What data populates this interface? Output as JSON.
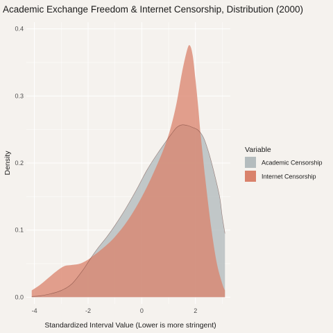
{
  "chart_data": {
    "type": "area",
    "title": "Academic Exchange Freedom & Internet Censorship, Distribution (2000)",
    "xlabel": "Standardized Interval Value (Lower is more stringent)",
    "ylabel": "Density",
    "xlim": [
      -4.3,
      3.3
    ],
    "ylim": [
      -0.01,
      0.41
    ],
    "x_ticks": [
      -4,
      -2,
      0,
      2
    ],
    "y_ticks": [
      0.0,
      0.1,
      0.2,
      0.3,
      0.4
    ],
    "x_tick_labels": [
      "-4",
      "-2",
      "0",
      "2"
    ],
    "y_tick_labels": [
      "0.0",
      "0.1",
      "0.2",
      "0.3",
      "0.4"
    ],
    "grid": true,
    "legend": {
      "title": "Variable",
      "position": "right",
      "entries": [
        "Academic Censorship",
        "Internet Censorship"
      ]
    },
    "series": [
      {
        "name": "Academic Censorship",
        "color": "#b4bcbe",
        "x": [
          -4.1,
          -3.8,
          -3.4,
          -3.0,
          -2.6,
          -2.2,
          -2.0,
          -1.8,
          -1.6,
          -1.3,
          -1.0,
          -0.6,
          -0.2,
          0.2,
          0.6,
          0.9,
          1.1,
          1.3,
          1.5,
          1.7,
          1.9,
          2.1,
          2.3,
          2.5,
          2.7,
          2.9,
          3.0,
          3.1
        ],
        "y": [
          0.001,
          0.002,
          0.005,
          0.01,
          0.02,
          0.04,
          0.052,
          0.064,
          0.075,
          0.09,
          0.107,
          0.132,
          0.16,
          0.19,
          0.215,
          0.232,
          0.243,
          0.253,
          0.257,
          0.256,
          0.253,
          0.249,
          0.238,
          0.215,
          0.185,
          0.15,
          0.12,
          0.095
        ]
      },
      {
        "name": "Internet Censorship",
        "color": "#d9826b",
        "x": [
          -4.1,
          -3.8,
          -3.5,
          -3.2,
          -2.9,
          -2.6,
          -2.3,
          -2.0,
          -1.8,
          -1.6,
          -1.3,
          -1.0,
          -0.6,
          -0.2,
          0.2,
          0.6,
          0.9,
          1.1,
          1.3,
          1.5,
          1.7,
          1.8,
          1.9,
          2.0,
          2.1,
          2.2,
          2.4,
          2.6,
          2.8,
          3.0,
          3.1
        ],
        "y": [
          0.01,
          0.018,
          0.028,
          0.038,
          0.046,
          0.048,
          0.05,
          0.056,
          0.062,
          0.068,
          0.078,
          0.09,
          0.11,
          0.135,
          0.165,
          0.2,
          0.23,
          0.256,
          0.29,
          0.335,
          0.37,
          0.375,
          0.36,
          0.325,
          0.285,
          0.24,
          0.165,
          0.1,
          0.05,
          0.02,
          0.01
        ]
      }
    ]
  }
}
